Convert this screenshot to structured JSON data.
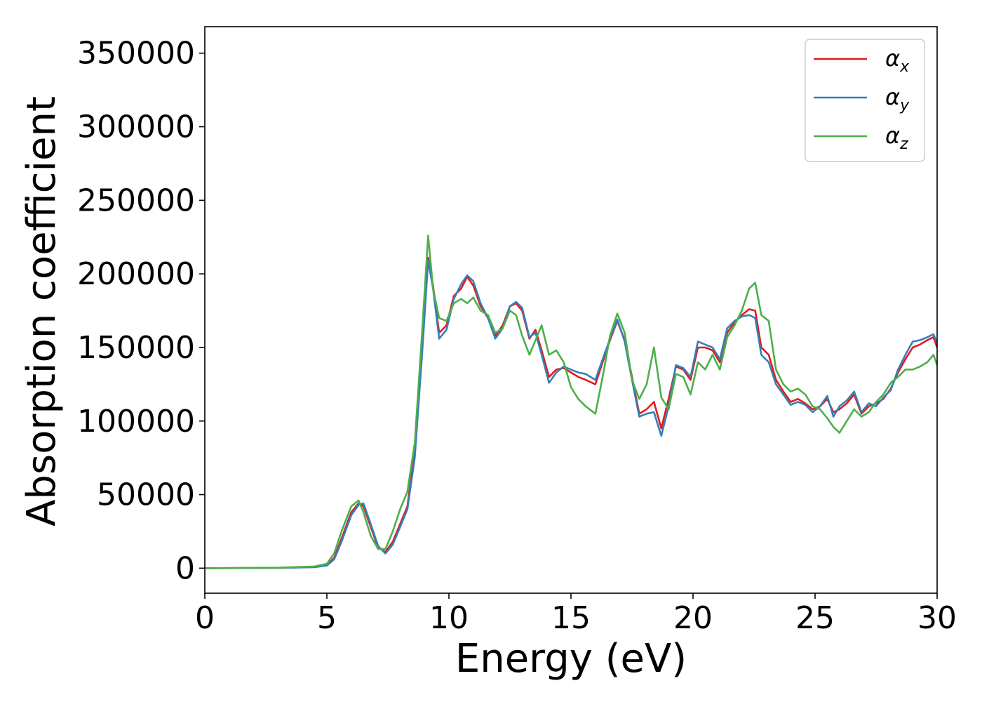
{
  "chart_data": {
    "type": "line",
    "title": "",
    "xlabel": "Energy (eV)",
    "ylabel": "Absorption coefficient",
    "xlim": [
      0,
      30
    ],
    "ylim": [
      -17000,
      368000
    ],
    "xticks": [
      0,
      5,
      10,
      15,
      20,
      25,
      30
    ],
    "yticks": [
      0,
      50000,
      100000,
      150000,
      200000,
      250000,
      300000,
      350000
    ],
    "grid": false,
    "legend_position": "top-right",
    "series": [
      {
        "name": "α",
        "subscript": "x",
        "color": "#e41a1c",
        "x": [
          0,
          3,
          4.5,
          5,
          5.3,
          5.6,
          6.0,
          6.3,
          6.5,
          6.8,
          7.1,
          7.4,
          7.7,
          8.0,
          8.3,
          8.6,
          8.9,
          9.15,
          9.35,
          9.6,
          9.9,
          10.2,
          10.5,
          10.75,
          11.0,
          11.3,
          11.6,
          11.9,
          12.2,
          12.5,
          12.75,
          13.0,
          13.3,
          13.55,
          13.8,
          14.1,
          14.4,
          14.7,
          15.0,
          15.3,
          15.6,
          16.0,
          16.3,
          16.6,
          16.9,
          17.2,
          17.5,
          17.8,
          18.1,
          18.4,
          18.7,
          19.0,
          19.3,
          19.6,
          19.9,
          20.2,
          20.5,
          20.8,
          21.1,
          21.4,
          21.7,
          22.0,
          22.3,
          22.55,
          22.8,
          23.1,
          23.4,
          23.7,
          24.0,
          24.3,
          24.6,
          24.9,
          25.2,
          25.5,
          25.75,
          26.0,
          26.3,
          26.6,
          26.9,
          27.2,
          27.5,
          27.8,
          28.1,
          28.4,
          28.7,
          29.0,
          29.3,
          29.6,
          29.85,
          30.0
        ],
        "y": [
          0,
          200,
          800,
          2000,
          7000,
          20000,
          38000,
          44000,
          42000,
          28000,
          14000,
          11000,
          18000,
          30000,
          42000,
          80000,
          150000,
          211000,
          192000,
          160000,
          165000,
          185000,
          190000,
          198000,
          192000,
          178000,
          170000,
          158000,
          165000,
          178000,
          180000,
          175000,
          156000,
          162000,
          148000,
          130000,
          135000,
          136000,
          133000,
          130000,
          128000,
          125000,
          140000,
          155000,
          168000,
          155000,
          130000,
          105000,
          108000,
          113000,
          95000,
          115000,
          137000,
          135000,
          128000,
          150000,
          150000,
          148000,
          140000,
          160000,
          167000,
          172000,
          176000,
          175000,
          150000,
          145000,
          128000,
          120000,
          113000,
          115000,
          112000,
          108000,
          110000,
          115000,
          106000,
          108000,
          112000,
          118000,
          105000,
          110000,
          112000,
          115000,
          122000,
          133000,
          142000,
          150000,
          152000,
          155000,
          157000,
          150000
        ]
      },
      {
        "name": "α",
        "subscript": "y",
        "color": "#377eb8",
        "x": [
          0,
          3,
          4.5,
          5,
          5.3,
          5.6,
          6.0,
          6.3,
          6.5,
          6.8,
          7.1,
          7.4,
          7.7,
          8.0,
          8.3,
          8.6,
          8.9,
          9.15,
          9.35,
          9.6,
          9.9,
          10.2,
          10.5,
          10.75,
          11.0,
          11.3,
          11.6,
          11.9,
          12.2,
          12.5,
          12.75,
          13.0,
          13.3,
          13.55,
          13.8,
          14.1,
          14.4,
          14.7,
          15.0,
          15.3,
          15.6,
          16.0,
          16.3,
          16.6,
          16.9,
          17.2,
          17.5,
          17.8,
          18.1,
          18.4,
          18.7,
          19.0,
          19.3,
          19.6,
          19.9,
          20.2,
          20.5,
          20.8,
          21.1,
          21.4,
          21.7,
          22.0,
          22.3,
          22.55,
          22.8,
          23.1,
          23.4,
          23.7,
          24.0,
          24.3,
          24.6,
          24.9,
          25.2,
          25.5,
          25.75,
          26.0,
          26.3,
          26.6,
          26.9,
          27.2,
          27.5,
          27.8,
          28.1,
          28.4,
          28.7,
          29.0,
          29.3,
          29.6,
          29.85,
          30.0
        ],
        "y": [
          0,
          200,
          700,
          1800,
          6000,
          18000,
          36000,
          43000,
          44000,
          30000,
          15000,
          10000,
          16000,
          28000,
          40000,
          75000,
          145000,
          209000,
          190000,
          156000,
          162000,
          183000,
          193000,
          199000,
          195000,
          180000,
          170000,
          156000,
          163000,
          178000,
          181000,
          177000,
          157000,
          160000,
          145000,
          126000,
          133000,
          137000,
          135000,
          133000,
          132000,
          128000,
          142000,
          156000,
          169000,
          154000,
          128000,
          103000,
          105000,
          106000,
          90000,
          110000,
          138000,
          136000,
          130000,
          154000,
          152000,
          150000,
          142000,
          163000,
          168000,
          171000,
          172000,
          170000,
          145000,
          140000,
          125000,
          118000,
          111000,
          113000,
          111000,
          106000,
          110000,
          117000,
          103000,
          110000,
          114000,
          120000,
          106000,
          112000,
          110000,
          116000,
          121000,
          135000,
          145000,
          154000,
          155000,
          157000,
          159000,
          153000
        ]
      },
      {
        "name": "α",
        "subscript": "z",
        "color": "#4daf4a",
        "x": [
          0,
          3,
          4.5,
          5,
          5.3,
          5.6,
          6.0,
          6.3,
          6.5,
          6.8,
          7.1,
          7.4,
          7.7,
          8.0,
          8.3,
          8.6,
          8.9,
          9.15,
          9.35,
          9.6,
          9.9,
          10.2,
          10.5,
          10.75,
          11.0,
          11.3,
          11.6,
          11.9,
          12.2,
          12.5,
          12.75,
          13.0,
          13.3,
          13.55,
          13.8,
          14.1,
          14.4,
          14.7,
          15.0,
          15.3,
          15.6,
          16.0,
          16.3,
          16.6,
          16.9,
          17.2,
          17.5,
          17.8,
          18.1,
          18.4,
          18.7,
          19.0,
          19.3,
          19.6,
          19.9,
          20.2,
          20.5,
          20.8,
          21.1,
          21.4,
          21.7,
          22.0,
          22.3,
          22.55,
          22.8,
          23.1,
          23.4,
          23.7,
          24.0,
          24.3,
          24.6,
          24.9,
          25.2,
          25.5,
          25.75,
          26.0,
          26.3,
          26.6,
          26.9,
          27.2,
          27.5,
          27.8,
          28.1,
          28.4,
          28.7,
          29.0,
          29.3,
          29.6,
          29.85,
          30.0
        ],
        "y": [
          0,
          300,
          1200,
          3000,
          10000,
          25000,
          42000,
          46000,
          38000,
          22000,
          13000,
          13000,
          25000,
          40000,
          52000,
          85000,
          160000,
          226000,
          190000,
          170000,
          168000,
          180000,
          183000,
          180000,
          184000,
          175000,
          172000,
          160000,
          163000,
          175000,
          172000,
          158000,
          145000,
          155000,
          165000,
          145000,
          148000,
          140000,
          123000,
          115000,
          110000,
          105000,
          130000,
          158000,
          173000,
          160000,
          128000,
          115000,
          125000,
          150000,
          116000,
          108000,
          132000,
          130000,
          118000,
          140000,
          135000,
          145000,
          135000,
          157000,
          165000,
          175000,
          190000,
          194000,
          172000,
          168000,
          135000,
          125000,
          120000,
          122000,
          118000,
          110000,
          108000,
          102000,
          96000,
          92000,
          100000,
          108000,
          103000,
          106000,
          113000,
          118000,
          126000,
          130000,
          135000,
          135000,
          137000,
          140000,
          145000,
          138000
        ]
      }
    ]
  }
}
